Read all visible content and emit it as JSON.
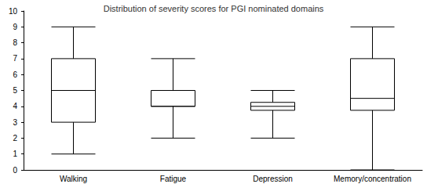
{
  "chart_data": {
    "type": "boxplot",
    "title": "Distribution of severity scores for PGI nominated domains",
    "categories": [
      "Walking",
      "Fatigue",
      "Depression",
      "Memory/concentration"
    ],
    "values": [
      [
        1,
        3,
        5,
        7,
        9
      ],
      [
        2,
        4,
        4,
        5,
        7
      ],
      [
        2,
        3.75,
        4,
        4.25,
        5
      ],
      [
        0,
        3.75,
        4.5,
        7,
        9
      ]
    ],
    "color": "#000000",
    "ylim": [
      0,
      10
    ],
    "yticks": [
      0,
      1,
      2,
      3,
      4,
      5,
      6,
      7,
      8,
      9,
      10
    ],
    "grid": false
  }
}
